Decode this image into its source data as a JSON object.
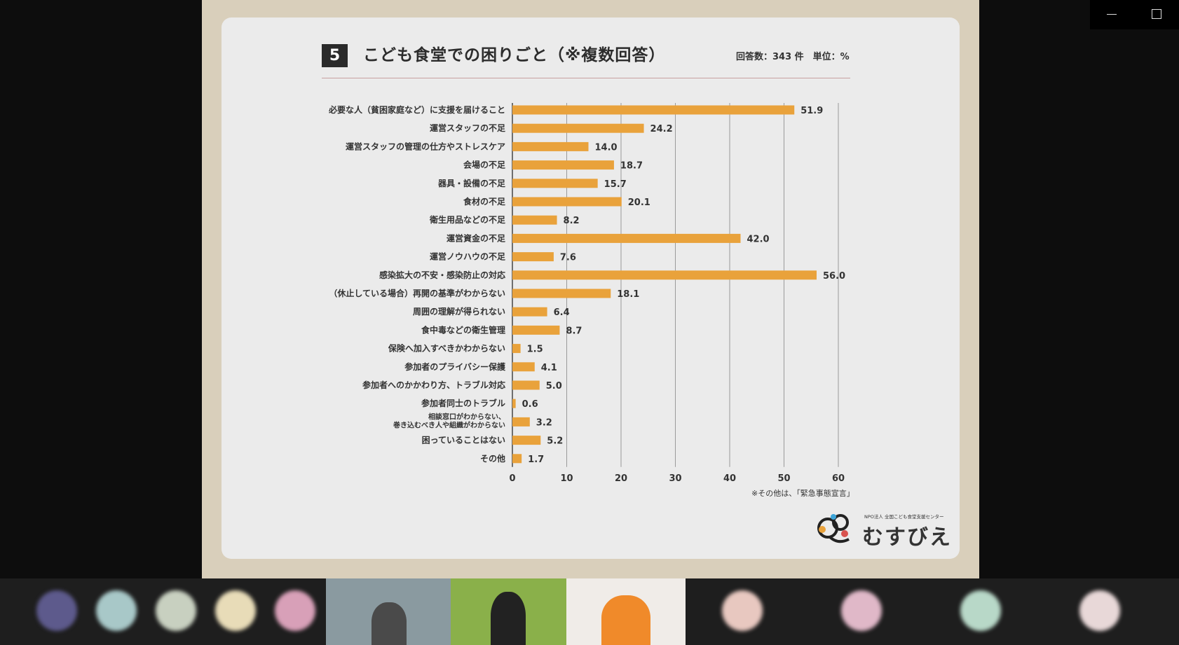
{
  "slide": {
    "number": "5",
    "title": "こども食堂での困りごと（※複数回答）",
    "meta": "回答数：343 件　単位：%",
    "note": "※その他は、「緊急事態宣言」",
    "logo_org": "NPO法人 全国こども食堂支援センター",
    "logo_name": "むすびえ"
  },
  "chart_data": {
    "type": "bar",
    "orientation": "horizontal",
    "title": "こども食堂での困りごと（※複数回答）",
    "unit": "%",
    "xlim": [
      0,
      60
    ],
    "xticks": [
      "0",
      "10",
      "20",
      "30",
      "40",
      "50",
      "60"
    ],
    "grid": true,
    "color": "#e9a23b",
    "categories": [
      [
        "必要な人（貧困家庭など）に支援を届けること"
      ],
      [
        "運営スタッフの不足"
      ],
      [
        "運営スタッフの管理の仕方やストレスケア"
      ],
      [
        "会場の不足"
      ],
      [
        "器具・設備の不足"
      ],
      [
        "食材の不足"
      ],
      [
        "衛生用品などの不足"
      ],
      [
        "運営資金の不足"
      ],
      [
        "運営ノウハウの不足"
      ],
      [
        "感染拡大の不安・感染防止の対応"
      ],
      [
        "（休止している場合）再開の基準がわからない"
      ],
      [
        "周囲の理解が得られない"
      ],
      [
        "食中毒などの衛生管理"
      ],
      [
        "保険へ加入すべきかわからない"
      ],
      [
        "参加者のプライバシー保護"
      ],
      [
        "参加者へのかかわり方、トラブル対応"
      ],
      [
        "参加者同士のトラブル"
      ],
      [
        "相談窓口がわからない、",
        "巻き込むべき人や組織がわからない"
      ],
      [
        "困っていることはない"
      ],
      [
        "その他"
      ]
    ],
    "values": [
      51.9,
      24.2,
      14.0,
      18.7,
      15.7,
      20.1,
      8.2,
      42.0,
      7.6,
      56.0,
      18.1,
      6.4,
      8.7,
      1.5,
      4.1,
      5.0,
      0.6,
      3.2,
      5.2,
      1.7
    ],
    "value_labels": [
      "51.9",
      "24.2",
      "14.0",
      "18.7",
      "15.7",
      "20.1",
      "8.2",
      "42.0",
      "7.6",
      "56.0",
      "18.1",
      "6.4",
      "8.7",
      "1.5",
      "4.1",
      "5.0",
      "0.6",
      "3.2",
      "5.2",
      "1.7"
    ]
  },
  "video_strip": {
    "tiles": [
      "blurred-participant",
      "blurred-participant",
      "blurred-participant",
      "blurred-participant",
      "blurred-participant",
      "camera-participant",
      "camera-participant-masked",
      "camera-participant-orange",
      "blurred-participant",
      "blurred-participant",
      "blurred-participant",
      "blurred-participant"
    ]
  },
  "window": {
    "minimize_icon": "minimize-icon",
    "maximize_icon": "maximize-icon"
  }
}
